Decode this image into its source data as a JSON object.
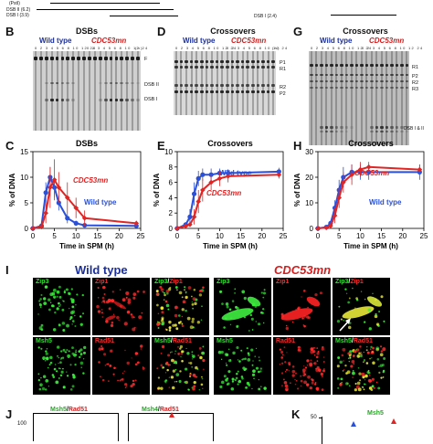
{
  "panel_A_fragments": {
    "labels": [
      "(PstI)",
      "DSB II (6.2)",
      "DSB I (3.9)"
    ],
    "right_label": "DSB I (2.4)"
  },
  "panels": {
    "B": {
      "letter": "B",
      "title": "DSBs",
      "wt": "Wild type",
      "mut": "CDC53mn",
      "bands": [
        "F",
        "DSB II",
        "DSB I"
      ]
    },
    "D": {
      "letter": "D",
      "title": "Crossovers",
      "wt": "Wild type",
      "mut": "CDC53mn",
      "bands": [
        "P1",
        "R1",
        "R2",
        "P2"
      ]
    },
    "G": {
      "letter": "G",
      "title": "Crossovers",
      "wt": "Wild type",
      "mut": "CDC53mn",
      "bands": [
        "R1",
        "P2",
        "R2",
        "R3",
        "DSB I & II"
      ]
    },
    "lanes_wt": "0  2  3  4  5  6  8  10  12  24",
    "lanes_mut": "0  2  3  4  5  6  8  10  12  24",
    "lane_suffix": "(h)"
  },
  "graphs": {
    "C": {
      "letter": "C"
    },
    "E": {
      "letter": "E"
    },
    "H": {
      "letter": "H"
    }
  },
  "chart_data": [
    {
      "type": "line",
      "panel": "C",
      "title": "DSBs",
      "xlabel": "Time in SPM (h)",
      "ylabel": "% of DNA",
      "xlim": [
        0,
        25
      ],
      "ylim": [
        0,
        15
      ],
      "xticks": [
        0,
        5,
        10,
        15,
        20,
        25
      ],
      "yticks": [
        0,
        5,
        10,
        15
      ],
      "series": [
        {
          "name": "Wild type",
          "color": "#2b50d8",
          "x": [
            0,
            2,
            3,
            4,
            5,
            6,
            8,
            10,
            12,
            24
          ],
          "y": [
            0,
            0.5,
            7,
            10,
            8,
            5,
            2,
            1,
            0.6,
            0.5
          ],
          "err": [
            0,
            0.5,
            2,
            2,
            2,
            1.5,
            1,
            0.5,
            0.3,
            0.3
          ]
        },
        {
          "name": "CDC53mn",
          "color": "#e02525",
          "x": [
            0,
            2,
            3,
            4,
            5,
            6,
            8,
            10,
            12,
            24
          ],
          "y": [
            0,
            0.3,
            3,
            8,
            9.5,
            8,
            6,
            4,
            2,
            1
          ],
          "err": [
            0,
            0.3,
            2,
            4,
            4,
            3,
            3,
            2,
            1.5,
            0.5
          ]
        }
      ]
    },
    {
      "type": "line",
      "panel": "E",
      "title": "Crossovers",
      "xlabel": "Time in SPM (h)",
      "ylabel": "% of DNA",
      "xlim": [
        0,
        25
      ],
      "ylim": [
        0,
        10
      ],
      "xticks": [
        0,
        5,
        10,
        15,
        20,
        25
      ],
      "yticks": [
        0,
        2,
        4,
        6,
        8,
        10
      ],
      "series": [
        {
          "name": "Wild type",
          "color": "#2b50d8",
          "x": [
            0,
            2,
            3,
            4,
            5,
            6,
            8,
            10,
            12,
            24
          ],
          "y": [
            0,
            0.5,
            1.5,
            4.5,
            6.5,
            7,
            7,
            7.2,
            7.2,
            7.4
          ],
          "err": [
            0,
            0.2,
            1,
            1.5,
            1,
            0.8,
            0.8,
            0.6,
            0.5,
            0.5
          ]
        },
        {
          "name": "CDC53mn",
          "color": "#e02525",
          "x": [
            0,
            2,
            3,
            4,
            5,
            6,
            8,
            10,
            12,
            24
          ],
          "y": [
            0,
            0.3,
            0.5,
            1.5,
            3.5,
            5,
            6,
            6.5,
            6.8,
            7
          ],
          "err": [
            0,
            0.2,
            0.3,
            1,
            1.5,
            1.5,
            1,
            1,
            0.8,
            0.5
          ]
        }
      ]
    },
    {
      "type": "line",
      "panel": "H",
      "title": "Crossovers",
      "xlabel": "Time in SPM (h)",
      "ylabel": "% of DNA",
      "xlim": [
        0,
        25
      ],
      "ylim": [
        0,
        30
      ],
      "xticks": [
        0,
        5,
        10,
        15,
        20,
        25
      ],
      "yticks": [
        0,
        10,
        20,
        30
      ],
      "series": [
        {
          "name": "Wild type",
          "color": "#2b50d8",
          "x": [
            0,
            2,
            3,
            4,
            5,
            6,
            8,
            10,
            12,
            24
          ],
          "y": [
            0,
            0.5,
            2,
            8,
            15,
            20,
            22,
            22,
            22,
            22
          ],
          "err": [
            0,
            0.3,
            1,
            3,
            4,
            4,
            3,
            3,
            3,
            3
          ]
        },
        {
          "name": "CDC53mn",
          "color": "#e02525",
          "x": [
            0,
            2,
            3,
            4,
            5,
            6,
            8,
            10,
            12,
            24
          ],
          "y": [
            0,
            0.3,
            1,
            5,
            12,
            18,
            21,
            23,
            24,
            23
          ],
          "err": [
            0,
            0.3,
            1,
            3,
            4,
            4,
            4,
            3,
            2,
            2
          ]
        }
      ]
    }
  ],
  "panel_I": {
    "letter": "I",
    "wt": "Wild type",
    "mut": "CDC53mn",
    "row1": [
      "Zip3",
      "Zip1",
      "Zip3/Zip1"
    ],
    "row2": [
      "Msh5",
      "Rad51",
      "Msh5/Rad51"
    ]
  },
  "panel_J": {
    "letter": "J",
    "cell1": "Msh5/Rad51",
    "cell2": "Msh4/Rad51",
    "tick": "100"
  },
  "panel_K": {
    "letter": "K",
    "tick": "50",
    "label": "Msh5"
  }
}
